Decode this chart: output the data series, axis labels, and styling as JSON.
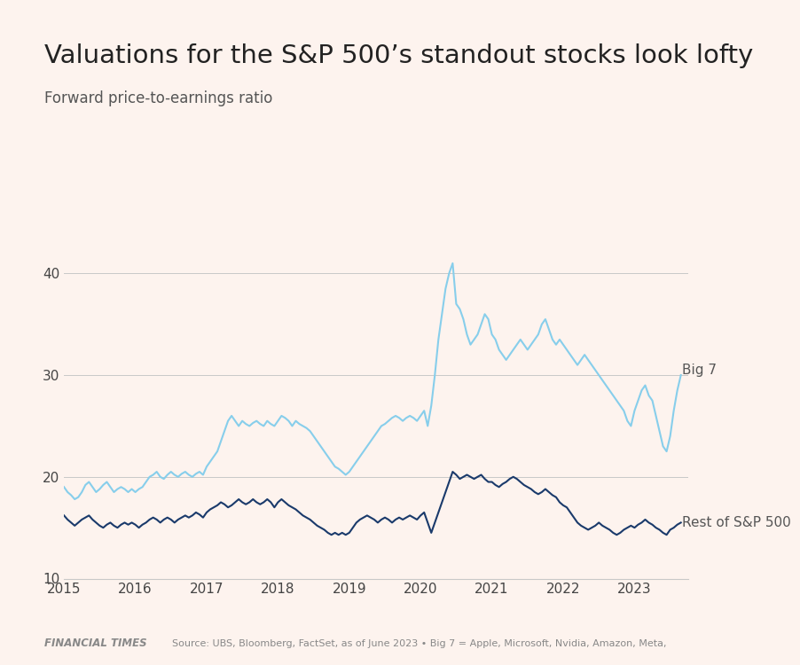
{
  "title": "Valuations for the S&P 500’s standout stocks look lofty",
  "subtitle": "Forward price-to-earnings ratio",
  "footer_left": "FINANCIAL TIMES",
  "footer_right": "Source: UBS, Bloomberg, FactSet, as of June 2023 • Big 7 = Apple, Microsoft, Nvidia, Amazon, Meta,",
  "background_color": "#fdf3ee",
  "big7_color": "#87CEEB",
  "rest_color": "#1a3a6b",
  "title_fontsize": 21,
  "subtitle_fontsize": 12,
  "ylim": [
    10,
    44
  ],
  "yticks": [
    10,
    20,
    30,
    40
  ],
  "xlim_start": 2015.0,
  "xlim_end": 2023.75,
  "top_bar_color": "#1a1a1a",
  "big7_label": "Big 7",
  "rest_label": "Rest of S&P 500",
  "big7_data": [
    [
      2015.0,
      19.0
    ],
    [
      2015.05,
      18.5
    ],
    [
      2015.1,
      18.2
    ],
    [
      2015.15,
      17.8
    ],
    [
      2015.2,
      18.0
    ],
    [
      2015.25,
      18.5
    ],
    [
      2015.3,
      19.2
    ],
    [
      2015.35,
      19.5
    ],
    [
      2015.4,
      19.0
    ],
    [
      2015.45,
      18.5
    ],
    [
      2015.5,
      18.8
    ],
    [
      2015.55,
      19.2
    ],
    [
      2015.6,
      19.5
    ],
    [
      2015.65,
      19.0
    ],
    [
      2015.7,
      18.5
    ],
    [
      2015.75,
      18.8
    ],
    [
      2015.8,
      19.0
    ],
    [
      2015.85,
      18.8
    ],
    [
      2015.9,
      18.5
    ],
    [
      2015.95,
      18.8
    ],
    [
      2016.0,
      18.5
    ],
    [
      2016.05,
      18.8
    ],
    [
      2016.1,
      19.0
    ],
    [
      2016.15,
      19.5
    ],
    [
      2016.2,
      20.0
    ],
    [
      2016.25,
      20.2
    ],
    [
      2016.3,
      20.5
    ],
    [
      2016.35,
      20.0
    ],
    [
      2016.4,
      19.8
    ],
    [
      2016.45,
      20.2
    ],
    [
      2016.5,
      20.5
    ],
    [
      2016.55,
      20.2
    ],
    [
      2016.6,
      20.0
    ],
    [
      2016.65,
      20.3
    ],
    [
      2016.7,
      20.5
    ],
    [
      2016.75,
      20.2
    ],
    [
      2016.8,
      20.0
    ],
    [
      2016.85,
      20.3
    ],
    [
      2016.9,
      20.5
    ],
    [
      2016.95,
      20.2
    ],
    [
      2017.0,
      21.0
    ],
    [
      2017.05,
      21.5
    ],
    [
      2017.1,
      22.0
    ],
    [
      2017.15,
      22.5
    ],
    [
      2017.2,
      23.5
    ],
    [
      2017.25,
      24.5
    ],
    [
      2017.3,
      25.5
    ],
    [
      2017.35,
      26.0
    ],
    [
      2017.4,
      25.5
    ],
    [
      2017.45,
      25.0
    ],
    [
      2017.5,
      25.5
    ],
    [
      2017.55,
      25.2
    ],
    [
      2017.6,
      25.0
    ],
    [
      2017.65,
      25.3
    ],
    [
      2017.7,
      25.5
    ],
    [
      2017.75,
      25.2
    ],
    [
      2017.8,
      25.0
    ],
    [
      2017.85,
      25.5
    ],
    [
      2017.9,
      25.2
    ],
    [
      2017.95,
      25.0
    ],
    [
      2018.0,
      25.5
    ],
    [
      2018.05,
      26.0
    ],
    [
      2018.1,
      25.8
    ],
    [
      2018.15,
      25.5
    ],
    [
      2018.2,
      25.0
    ],
    [
      2018.25,
      25.5
    ],
    [
      2018.3,
      25.2
    ],
    [
      2018.35,
      25.0
    ],
    [
      2018.4,
      24.8
    ],
    [
      2018.45,
      24.5
    ],
    [
      2018.5,
      24.0
    ],
    [
      2018.55,
      23.5
    ],
    [
      2018.6,
      23.0
    ],
    [
      2018.65,
      22.5
    ],
    [
      2018.7,
      22.0
    ],
    [
      2018.75,
      21.5
    ],
    [
      2018.8,
      21.0
    ],
    [
      2018.85,
      20.8
    ],
    [
      2018.9,
      20.5
    ],
    [
      2018.95,
      20.2
    ],
    [
      2019.0,
      20.5
    ],
    [
      2019.05,
      21.0
    ],
    [
      2019.1,
      21.5
    ],
    [
      2019.15,
      22.0
    ],
    [
      2019.2,
      22.5
    ],
    [
      2019.25,
      23.0
    ],
    [
      2019.3,
      23.5
    ],
    [
      2019.35,
      24.0
    ],
    [
      2019.4,
      24.5
    ],
    [
      2019.45,
      25.0
    ],
    [
      2019.5,
      25.2
    ],
    [
      2019.55,
      25.5
    ],
    [
      2019.6,
      25.8
    ],
    [
      2019.65,
      26.0
    ],
    [
      2019.7,
      25.8
    ],
    [
      2019.75,
      25.5
    ],
    [
      2019.8,
      25.8
    ],
    [
      2019.85,
      26.0
    ],
    [
      2019.9,
      25.8
    ],
    [
      2019.95,
      25.5
    ],
    [
      2020.0,
      26.0
    ],
    [
      2020.05,
      26.5
    ],
    [
      2020.1,
      25.0
    ],
    [
      2020.15,
      27.0
    ],
    [
      2020.2,
      30.0
    ],
    [
      2020.25,
      33.5
    ],
    [
      2020.3,
      36.0
    ],
    [
      2020.35,
      38.5
    ],
    [
      2020.4,
      40.0
    ],
    [
      2020.45,
      41.0
    ],
    [
      2020.5,
      37.0
    ],
    [
      2020.55,
      36.5
    ],
    [
      2020.6,
      35.5
    ],
    [
      2020.65,
      34.0
    ],
    [
      2020.7,
      33.0
    ],
    [
      2020.75,
      33.5
    ],
    [
      2020.8,
      34.0
    ],
    [
      2020.85,
      35.0
    ],
    [
      2020.9,
      36.0
    ],
    [
      2020.95,
      35.5
    ],
    [
      2021.0,
      34.0
    ],
    [
      2021.05,
      33.5
    ],
    [
      2021.1,
      32.5
    ],
    [
      2021.15,
      32.0
    ],
    [
      2021.2,
      31.5
    ],
    [
      2021.25,
      32.0
    ],
    [
      2021.3,
      32.5
    ],
    [
      2021.35,
      33.0
    ],
    [
      2021.4,
      33.5
    ],
    [
      2021.45,
      33.0
    ],
    [
      2021.5,
      32.5
    ],
    [
      2021.55,
      33.0
    ],
    [
      2021.6,
      33.5
    ],
    [
      2021.65,
      34.0
    ],
    [
      2021.7,
      35.0
    ],
    [
      2021.75,
      35.5
    ],
    [
      2021.8,
      34.5
    ],
    [
      2021.85,
      33.5
    ],
    [
      2021.9,
      33.0
    ],
    [
      2021.95,
      33.5
    ],
    [
      2022.0,
      33.0
    ],
    [
      2022.05,
      32.5
    ],
    [
      2022.1,
      32.0
    ],
    [
      2022.15,
      31.5
    ],
    [
      2022.2,
      31.0
    ],
    [
      2022.25,
      31.5
    ],
    [
      2022.3,
      32.0
    ],
    [
      2022.35,
      31.5
    ],
    [
      2022.4,
      31.0
    ],
    [
      2022.45,
      30.5
    ],
    [
      2022.5,
      30.0
    ],
    [
      2022.55,
      29.5
    ],
    [
      2022.6,
      29.0
    ],
    [
      2022.65,
      28.5
    ],
    [
      2022.7,
      28.0
    ],
    [
      2022.75,
      27.5
    ],
    [
      2022.8,
      27.0
    ],
    [
      2022.85,
      26.5
    ],
    [
      2022.9,
      25.5
    ],
    [
      2022.95,
      25.0
    ],
    [
      2023.0,
      26.5
    ],
    [
      2023.05,
      27.5
    ],
    [
      2023.1,
      28.5
    ],
    [
      2023.15,
      29.0
    ],
    [
      2023.2,
      28.0
    ],
    [
      2023.25,
      27.5
    ],
    [
      2023.3,
      26.0
    ],
    [
      2023.35,
      24.5
    ],
    [
      2023.4,
      23.0
    ],
    [
      2023.45,
      22.5
    ],
    [
      2023.5,
      24.0
    ],
    [
      2023.55,
      26.5
    ],
    [
      2023.6,
      28.5
    ],
    [
      2023.65,
      30.0
    ]
  ],
  "rest_data": [
    [
      2015.0,
      16.2
    ],
    [
      2015.05,
      15.8
    ],
    [
      2015.1,
      15.5
    ],
    [
      2015.15,
      15.2
    ],
    [
      2015.2,
      15.5
    ],
    [
      2015.25,
      15.8
    ],
    [
      2015.3,
      16.0
    ],
    [
      2015.35,
      16.2
    ],
    [
      2015.4,
      15.8
    ],
    [
      2015.45,
      15.5
    ],
    [
      2015.5,
      15.2
    ],
    [
      2015.55,
      15.0
    ],
    [
      2015.6,
      15.3
    ],
    [
      2015.65,
      15.5
    ],
    [
      2015.7,
      15.2
    ],
    [
      2015.75,
      15.0
    ],
    [
      2015.8,
      15.3
    ],
    [
      2015.85,
      15.5
    ],
    [
      2015.9,
      15.3
    ],
    [
      2015.95,
      15.5
    ],
    [
      2016.0,
      15.3
    ],
    [
      2016.05,
      15.0
    ],
    [
      2016.1,
      15.3
    ],
    [
      2016.15,
      15.5
    ],
    [
      2016.2,
      15.8
    ],
    [
      2016.25,
      16.0
    ],
    [
      2016.3,
      15.8
    ],
    [
      2016.35,
      15.5
    ],
    [
      2016.4,
      15.8
    ],
    [
      2016.45,
      16.0
    ],
    [
      2016.5,
      15.8
    ],
    [
      2016.55,
      15.5
    ],
    [
      2016.6,
      15.8
    ],
    [
      2016.65,
      16.0
    ],
    [
      2016.7,
      16.2
    ],
    [
      2016.75,
      16.0
    ],
    [
      2016.8,
      16.2
    ],
    [
      2016.85,
      16.5
    ],
    [
      2016.9,
      16.3
    ],
    [
      2016.95,
      16.0
    ],
    [
      2017.0,
      16.5
    ],
    [
      2017.05,
      16.8
    ],
    [
      2017.1,
      17.0
    ],
    [
      2017.15,
      17.2
    ],
    [
      2017.2,
      17.5
    ],
    [
      2017.25,
      17.3
    ],
    [
      2017.3,
      17.0
    ],
    [
      2017.35,
      17.2
    ],
    [
      2017.4,
      17.5
    ],
    [
      2017.45,
      17.8
    ],
    [
      2017.5,
      17.5
    ],
    [
      2017.55,
      17.3
    ],
    [
      2017.6,
      17.5
    ],
    [
      2017.65,
      17.8
    ],
    [
      2017.7,
      17.5
    ],
    [
      2017.75,
      17.3
    ],
    [
      2017.8,
      17.5
    ],
    [
      2017.85,
      17.8
    ],
    [
      2017.9,
      17.5
    ],
    [
      2017.95,
      17.0
    ],
    [
      2018.0,
      17.5
    ],
    [
      2018.05,
      17.8
    ],
    [
      2018.1,
      17.5
    ],
    [
      2018.15,
      17.2
    ],
    [
      2018.2,
      17.0
    ],
    [
      2018.25,
      16.8
    ],
    [
      2018.3,
      16.5
    ],
    [
      2018.35,
      16.2
    ],
    [
      2018.4,
      16.0
    ],
    [
      2018.45,
      15.8
    ],
    [
      2018.5,
      15.5
    ],
    [
      2018.55,
      15.2
    ],
    [
      2018.6,
      15.0
    ],
    [
      2018.65,
      14.8
    ],
    [
      2018.7,
      14.5
    ],
    [
      2018.75,
      14.3
    ],
    [
      2018.8,
      14.5
    ],
    [
      2018.85,
      14.3
    ],
    [
      2018.9,
      14.5
    ],
    [
      2018.95,
      14.3
    ],
    [
      2019.0,
      14.5
    ],
    [
      2019.05,
      15.0
    ],
    [
      2019.1,
      15.5
    ],
    [
      2019.15,
      15.8
    ],
    [
      2019.2,
      16.0
    ],
    [
      2019.25,
      16.2
    ],
    [
      2019.3,
      16.0
    ],
    [
      2019.35,
      15.8
    ],
    [
      2019.4,
      15.5
    ],
    [
      2019.45,
      15.8
    ],
    [
      2019.5,
      16.0
    ],
    [
      2019.55,
      15.8
    ],
    [
      2019.6,
      15.5
    ],
    [
      2019.65,
      15.8
    ],
    [
      2019.7,
      16.0
    ],
    [
      2019.75,
      15.8
    ],
    [
      2019.8,
      16.0
    ],
    [
      2019.85,
      16.2
    ],
    [
      2019.9,
      16.0
    ],
    [
      2019.95,
      15.8
    ],
    [
      2020.0,
      16.2
    ],
    [
      2020.05,
      16.5
    ],
    [
      2020.1,
      15.5
    ],
    [
      2020.15,
      14.5
    ],
    [
      2020.2,
      15.5
    ],
    [
      2020.25,
      16.5
    ],
    [
      2020.3,
      17.5
    ],
    [
      2020.35,
      18.5
    ],
    [
      2020.4,
      19.5
    ],
    [
      2020.45,
      20.5
    ],
    [
      2020.5,
      20.2
    ],
    [
      2020.55,
      19.8
    ],
    [
      2020.6,
      20.0
    ],
    [
      2020.65,
      20.2
    ],
    [
      2020.7,
      20.0
    ],
    [
      2020.75,
      19.8
    ],
    [
      2020.8,
      20.0
    ],
    [
      2020.85,
      20.2
    ],
    [
      2020.9,
      19.8
    ],
    [
      2020.95,
      19.5
    ],
    [
      2021.0,
      19.5
    ],
    [
      2021.05,
      19.2
    ],
    [
      2021.1,
      19.0
    ],
    [
      2021.15,
      19.3
    ],
    [
      2021.2,
      19.5
    ],
    [
      2021.25,
      19.8
    ],
    [
      2021.3,
      20.0
    ],
    [
      2021.35,
      19.8
    ],
    [
      2021.4,
      19.5
    ],
    [
      2021.45,
      19.2
    ],
    [
      2021.5,
      19.0
    ],
    [
      2021.55,
      18.8
    ],
    [
      2021.6,
      18.5
    ],
    [
      2021.65,
      18.3
    ],
    [
      2021.7,
      18.5
    ],
    [
      2021.75,
      18.8
    ],
    [
      2021.8,
      18.5
    ],
    [
      2021.85,
      18.2
    ],
    [
      2021.9,
      18.0
    ],
    [
      2021.95,
      17.5
    ],
    [
      2022.0,
      17.2
    ],
    [
      2022.05,
      17.0
    ],
    [
      2022.1,
      16.5
    ],
    [
      2022.15,
      16.0
    ],
    [
      2022.2,
      15.5
    ],
    [
      2022.25,
      15.2
    ],
    [
      2022.3,
      15.0
    ],
    [
      2022.35,
      14.8
    ],
    [
      2022.4,
      15.0
    ],
    [
      2022.45,
      15.2
    ],
    [
      2022.5,
      15.5
    ],
    [
      2022.55,
      15.2
    ],
    [
      2022.6,
      15.0
    ],
    [
      2022.65,
      14.8
    ],
    [
      2022.7,
      14.5
    ],
    [
      2022.75,
      14.3
    ],
    [
      2022.8,
      14.5
    ],
    [
      2022.85,
      14.8
    ],
    [
      2022.9,
      15.0
    ],
    [
      2022.95,
      15.2
    ],
    [
      2023.0,
      15.0
    ],
    [
      2023.05,
      15.3
    ],
    [
      2023.1,
      15.5
    ],
    [
      2023.15,
      15.8
    ],
    [
      2023.2,
      15.5
    ],
    [
      2023.25,
      15.3
    ],
    [
      2023.3,
      15.0
    ],
    [
      2023.35,
      14.8
    ],
    [
      2023.4,
      14.5
    ],
    [
      2023.45,
      14.3
    ],
    [
      2023.5,
      14.8
    ],
    [
      2023.55,
      15.0
    ],
    [
      2023.6,
      15.3
    ],
    [
      2023.65,
      15.5
    ]
  ]
}
